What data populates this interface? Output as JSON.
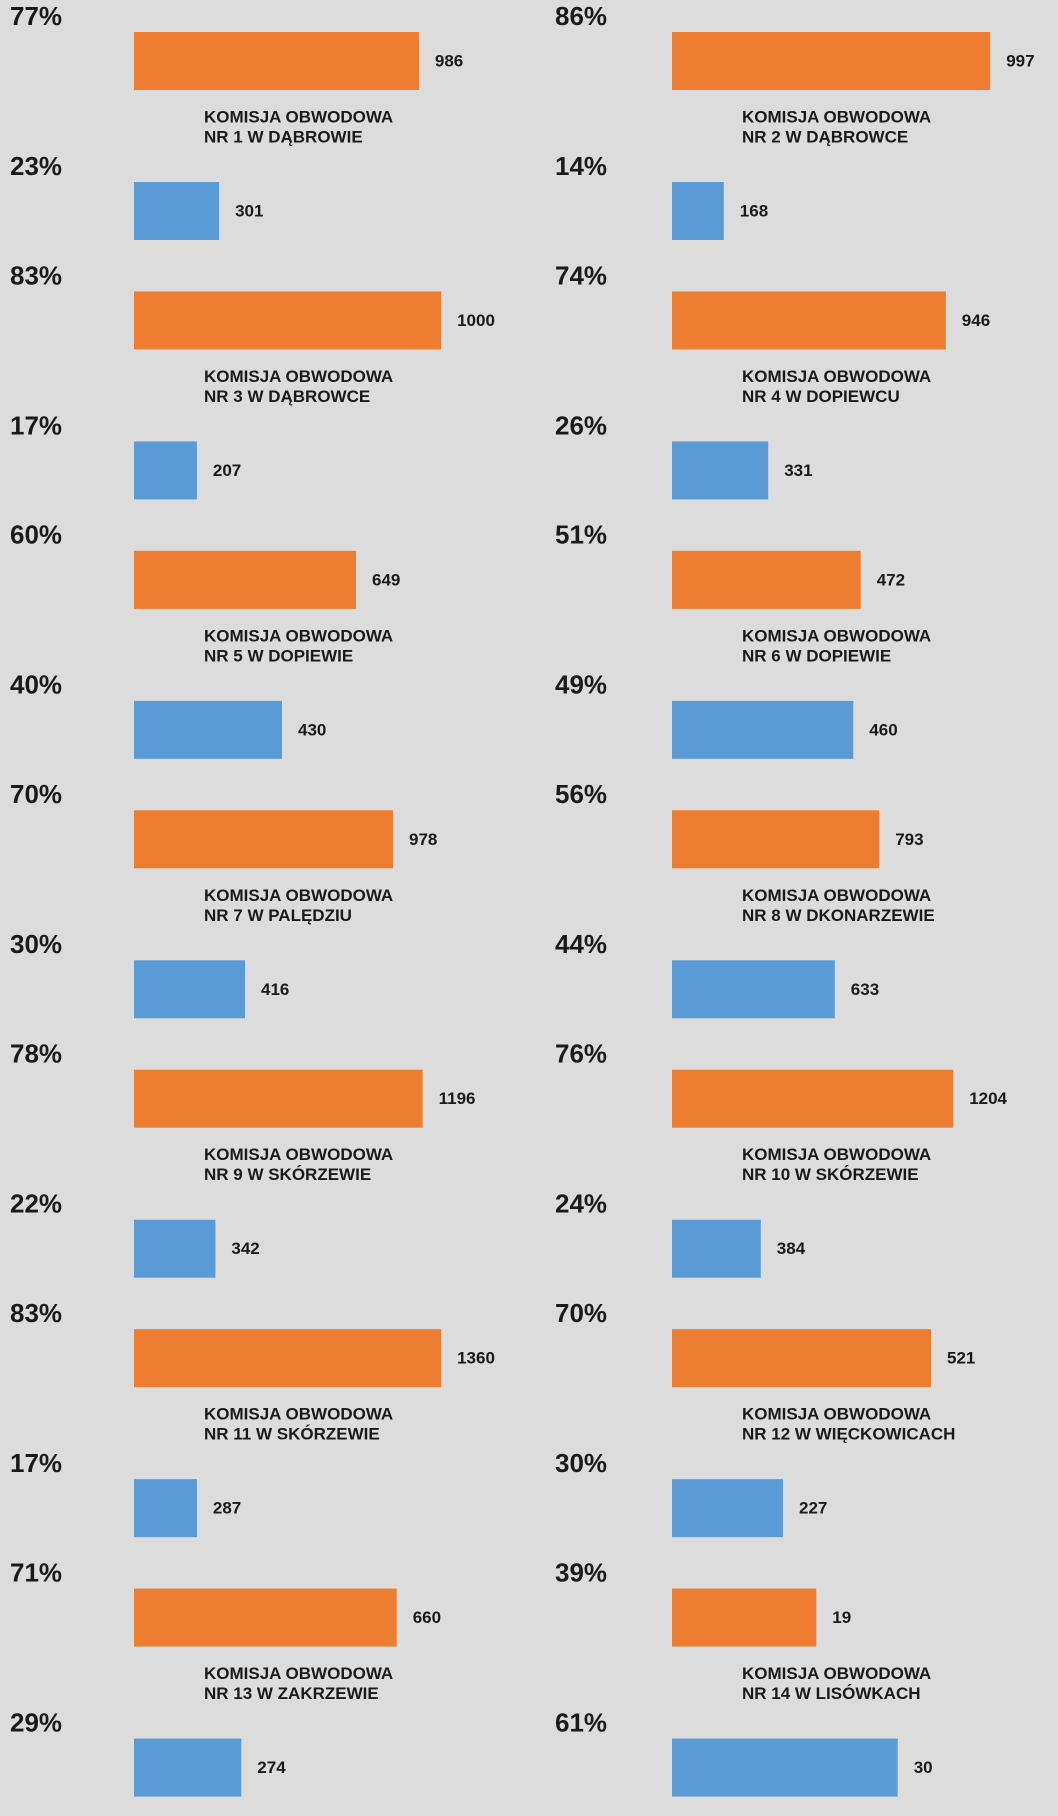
{
  "chart_data": [
    {
      "type": "bar",
      "title": [
        "KOMISJA OBWODOWA",
        "NR 1 W DĄBROWIE"
      ],
      "series": [
        {
          "color": "#ed7d31",
          "values": [
            77
          ],
          "value_labels": [
            "77%"
          ],
          "counts": [
            986
          ]
        },
        {
          "color": "#5b9bd5",
          "values": [
            23
          ],
          "value_labels": [
            "23%"
          ],
          "counts": [
            301
          ]
        }
      ]
    },
    {
      "type": "bar",
      "title": [
        "KOMISJA OBWODOWA",
        "NR 2 W DĄBROWCE"
      ],
      "series": [
        {
          "color": "#ed7d31",
          "values": [
            86
          ],
          "value_labels": [
            "86%"
          ],
          "counts": [
            997
          ]
        },
        {
          "color": "#5b9bd5",
          "values": [
            14
          ],
          "value_labels": [
            "14%"
          ],
          "counts": [
            168
          ]
        }
      ]
    },
    {
      "type": "bar",
      "title": [
        "KOMISJA OBWODOWA",
        "NR 3 W DĄBROWCE"
      ],
      "series": [
        {
          "color": "#ed7d31",
          "values": [
            83
          ],
          "value_labels": [
            "83%"
          ],
          "counts": [
            1000
          ]
        },
        {
          "color": "#5b9bd5",
          "values": [
            17
          ],
          "value_labels": [
            "17%"
          ],
          "counts": [
            207
          ]
        }
      ]
    },
    {
      "type": "bar",
      "title": [
        "KOMISJA OBWODOWA",
        "NR 4 W DOPIEWCU"
      ],
      "series": [
        {
          "color": "#ed7d31",
          "values": [
            74
          ],
          "value_labels": [
            "74%"
          ],
          "counts": [
            946
          ]
        },
        {
          "color": "#5b9bd5",
          "values": [
            26
          ],
          "value_labels": [
            "26%"
          ],
          "counts": [
            331
          ]
        }
      ]
    },
    {
      "type": "bar",
      "title": [
        "KOMISJA OBWODOWA",
        "NR 5 W DOPIEWIE"
      ],
      "series": [
        {
          "color": "#ed7d31",
          "values": [
            60
          ],
          "value_labels": [
            "60%"
          ],
          "counts": [
            649
          ]
        },
        {
          "color": "#5b9bd5",
          "values": [
            40
          ],
          "value_labels": [
            "40%"
          ],
          "counts": [
            430
          ]
        }
      ]
    },
    {
      "type": "bar",
      "title": [
        "KOMISJA OBWODOWA",
        "NR 6 W DOPIEWIE"
      ],
      "series": [
        {
          "color": "#ed7d31",
          "values": [
            51
          ],
          "value_labels": [
            "51%"
          ],
          "counts": [
            472
          ]
        },
        {
          "color": "#5b9bd5",
          "values": [
            49
          ],
          "value_labels": [
            "49%"
          ],
          "counts": [
            460
          ]
        }
      ]
    },
    {
      "type": "bar",
      "title": [
        "KOMISJA OBWODOWA",
        "NR 7 W PALĘDZIU"
      ],
      "series": [
        {
          "color": "#ed7d31",
          "values": [
            70
          ],
          "value_labels": [
            "70%"
          ],
          "counts": [
            978
          ]
        },
        {
          "color": "#5b9bd5",
          "values": [
            30
          ],
          "value_labels": [
            "30%"
          ],
          "counts": [
            416
          ]
        }
      ]
    },
    {
      "type": "bar",
      "title": [
        "KOMISJA OBWODOWA",
        "NR 8 W DKONARZEWIE"
      ],
      "series": [
        {
          "color": "#ed7d31",
          "values": [
            56
          ],
          "value_labels": [
            "56%"
          ],
          "counts": [
            793
          ]
        },
        {
          "color": "#5b9bd5",
          "values": [
            44
          ],
          "value_labels": [
            "44%"
          ],
          "counts": [
            633
          ]
        }
      ]
    },
    {
      "type": "bar",
      "title": [
        "KOMISJA OBWODOWA",
        "NR 9 W SKÓRZEWIE"
      ],
      "series": [
        {
          "color": "#ed7d31",
          "values": [
            78
          ],
          "value_labels": [
            "78%"
          ],
          "counts": [
            1196
          ]
        },
        {
          "color": "#5b9bd5",
          "values": [
            22
          ],
          "value_labels": [
            "22%"
          ],
          "counts": [
            342
          ]
        }
      ]
    },
    {
      "type": "bar",
      "title": [
        "KOMISJA OBWODOWA",
        "NR 10 W SKÓRZEWIE"
      ],
      "series": [
        {
          "color": "#ed7d31",
          "values": [
            76
          ],
          "value_labels": [
            "76%"
          ],
          "counts": [
            1204
          ]
        },
        {
          "color": "#5b9bd5",
          "values": [
            24
          ],
          "value_labels": [
            "24%"
          ],
          "counts": [
            384
          ]
        }
      ]
    },
    {
      "type": "bar",
      "title": [
        "KOMISJA OBWODOWA",
        "NR 11 W SKÓRZEWIE"
      ],
      "series": [
        {
          "color": "#ed7d31",
          "values": [
            83
          ],
          "value_labels": [
            "83%"
          ],
          "counts": [
            1360
          ]
        },
        {
          "color": "#5b9bd5",
          "values": [
            17
          ],
          "value_labels": [
            "17%"
          ],
          "counts": [
            287
          ]
        }
      ]
    },
    {
      "type": "bar",
      "title": [
        "KOMISJA OBWODOWA",
        "NR 12 W WIĘCKOWICACH"
      ],
      "series": [
        {
          "color": "#ed7d31",
          "values": [
            70
          ],
          "value_labels": [
            "70%"
          ],
          "counts": [
            521
          ]
        },
        {
          "color": "#5b9bd5",
          "values": [
            30
          ],
          "value_labels": [
            "30%"
          ],
          "counts": [
            227
          ]
        }
      ]
    },
    {
      "type": "bar",
      "title": [
        "KOMISJA OBWODOWA",
        "NR 13 W ZAKRZEWIE"
      ],
      "series": [
        {
          "color": "#ed7d31",
          "values": [
            71
          ],
          "value_labels": [
            "71%"
          ],
          "counts": [
            660
          ]
        },
        {
          "color": "#5b9bd5",
          "values": [
            29
          ],
          "value_labels": [
            "29%"
          ],
          "counts": [
            274
          ]
        }
      ]
    },
    {
      "type": "bar",
      "title": [
        "KOMISJA OBWODOWA",
        "NR 14 W LISÓWKACH"
      ],
      "series": [
        {
          "color": "#ed7d31",
          "values": [
            39
          ],
          "value_labels": [
            "39%"
          ],
          "counts": [
            19
          ]
        },
        {
          "color": "#5b9bd5",
          "values": [
            61
          ],
          "value_labels": [
            "61%"
          ],
          "counts": [
            30
          ]
        }
      ]
    }
  ]
}
